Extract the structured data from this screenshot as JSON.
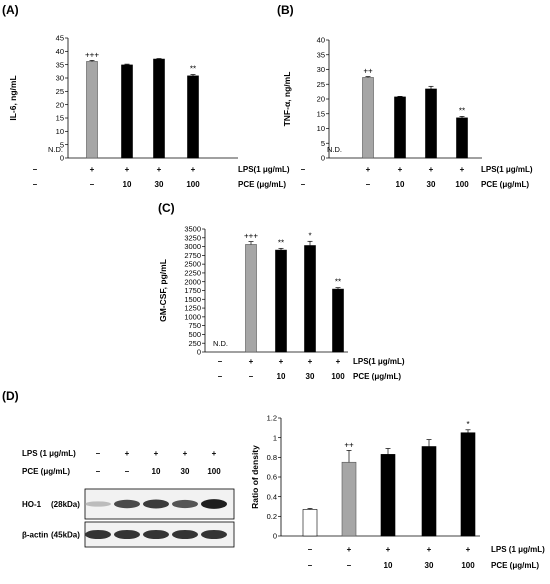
{
  "panels": {
    "A": "(A)",
    "B": "(B)",
    "C": "(C)",
    "D": "(D)"
  },
  "chart_data": [
    {
      "id": "A",
      "type": "bar",
      "ylabel": "IL-6, ng/mL",
      "ylim": [
        0,
        45
      ],
      "yticks": [
        0,
        5,
        10,
        15,
        20,
        25,
        30,
        35,
        40,
        45
      ],
      "values": [
        null,
        36.2,
        34.9,
        37.1,
        30.8
      ],
      "errors": [
        0,
        0.4,
        0.3,
        0.2,
        0.5
      ],
      "colors": [
        "none",
        "#a6a6a6",
        "#000000",
        "#000000",
        "#000000"
      ],
      "significance": [
        "",
        "+++",
        "",
        "",
        "**"
      ],
      "nd_label": "N.D.",
      "condition_rows": [
        {
          "label": "LPS(1 μg/mL)",
          "values": [
            "–",
            "+",
            "+",
            "+",
            "+"
          ]
        },
        {
          "label": "PCE (μg/mL)",
          "values": [
            "–",
            "–",
            "10",
            "30",
            "100"
          ]
        }
      ]
    },
    {
      "id": "B",
      "type": "bar",
      "ylabel": "TNF-α, ng/mL",
      "ylim": [
        0,
        40
      ],
      "yticks": [
        0,
        5,
        10,
        15,
        20,
        25,
        30,
        35,
        40
      ],
      "values": [
        null,
        27.3,
        20.7,
        23.4,
        13.6
      ],
      "errors": [
        0,
        0.3,
        0.2,
        0.9,
        0.5
      ],
      "colors": [
        "none",
        "#a6a6a6",
        "#000000",
        "#000000",
        "#000000"
      ],
      "significance": [
        "",
        "++",
        "",
        "",
        "**"
      ],
      "nd_label": "N.D.",
      "condition_rows": [
        {
          "label": "LPS(1 μg/mL)",
          "values": [
            "–",
            "+",
            "+",
            "+",
            "+"
          ]
        },
        {
          "label": "PCE (μg/mL)",
          "values": [
            "–",
            "–",
            "10",
            "30",
            "100"
          ]
        }
      ]
    },
    {
      "id": "C",
      "type": "bar",
      "ylabel": "GM-CSF, pg/mL",
      "ylim": [
        0,
        3500
      ],
      "yticks": [
        0,
        250,
        500,
        750,
        1000,
        1250,
        1500,
        1750,
        2000,
        2250,
        2500,
        2750,
        3000,
        3250,
        3500
      ],
      "values": [
        null,
        3060,
        2900,
        3030,
        1790
      ],
      "errors": [
        0,
        80,
        50,
        120,
        40
      ],
      "colors": [
        "none",
        "#a6a6a6",
        "#000000",
        "#000000",
        "#000000"
      ],
      "significance": [
        "",
        "+++",
        "**",
        "*",
        "**"
      ],
      "nd_label": "N.D.",
      "condition_rows": [
        {
          "label": "LPS(1 μg/mL)",
          "values": [
            "–",
            "+",
            "+",
            "+",
            "+"
          ]
        },
        {
          "label": "PCE (μg/mL)",
          "values": [
            "–",
            "–",
            "10",
            "30",
            "100"
          ]
        }
      ]
    },
    {
      "id": "D",
      "type": "bar",
      "ylabel": "Ratio of density",
      "ylim": [
        0,
        1.2
      ],
      "yticks": [
        0,
        0.2,
        0.4,
        0.6,
        0.8,
        1.0,
        1.2
      ],
      "ytick_labels": [
        "0",
        "0.2",
        "0.4",
        "0.6",
        "0.8",
        "1",
        "1.2"
      ],
      "values": [
        0.27,
        0.75,
        0.83,
        0.91,
        1.05
      ],
      "errors": [
        0.01,
        0.12,
        0.06,
        0.07,
        0.03
      ],
      "colors": [
        "#ffffff",
        "#a6a6a6",
        "#000000",
        "#000000",
        "#000000"
      ],
      "significance": [
        "",
        "++",
        "",
        "",
        "*"
      ],
      "condition_rows": [
        {
          "label": "LPS (1 μg/mL)",
          "values": [
            "–",
            "+",
            "+",
            "+",
            "+"
          ]
        },
        {
          "label": "PCE (μg/mL)",
          "values": [
            "–",
            "–",
            "10",
            "30",
            "100"
          ]
        }
      ]
    }
  ],
  "blot": {
    "condition_rows": [
      {
        "label": "LPS (1 μg/mL)",
        "values": [
          "–",
          "+",
          "+",
          "+",
          "+"
        ]
      },
      {
        "label": "PCE (μg/mL)",
        "values": [
          "–",
          "–",
          "10",
          "30",
          "100"
        ]
      }
    ],
    "bands": [
      {
        "name": "HO-1",
        "size": "(28kDa)",
        "intensities": [
          0.22,
          0.75,
          0.82,
          0.7,
          0.95
        ]
      },
      {
        "name": "β-actin",
        "size": "(45kDa)",
        "intensities": [
          0.85,
          0.85,
          0.85,
          0.85,
          0.85
        ]
      }
    ]
  }
}
